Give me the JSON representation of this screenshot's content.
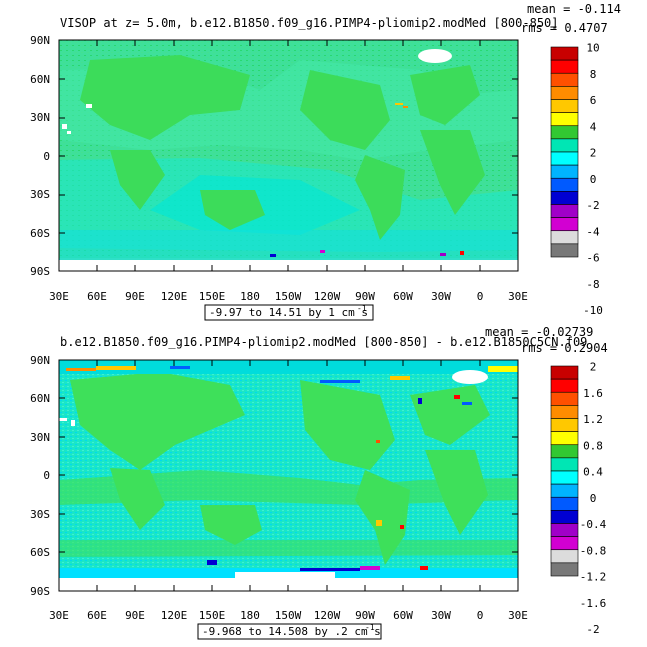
{
  "panels": [
    {
      "title": "VISOP at z=   5.0m, b.e12.B1850.f09_g16.PIMP4-pliomip2.modMed [800-850]",
      "mean_label": "mean = -0.114",
      "rms_label": "rms = 0.4707",
      "range_label": "-9.97 to 14.51 by 1 cm s",
      "range_sup": "-1",
      "colorbar_labels": [
        "10",
        "8",
        "6",
        "4",
        "2",
        "0",
        "-2",
        "-4",
        "-6",
        "-8",
        "-10"
      ]
    },
    {
      "title": "b.e12.B1850.f09_g16.PIMP4-pliomip2.modMed [800-850]  - b.e12.B1850C5CN.f09",
      "mean_label": "mean = -0.02739",
      "rms_label": "rms = 0.2904",
      "range_label": "-9.968 to 14.508 by .2 cm s",
      "range_sup": "-1",
      "colorbar_labels": [
        "2",
        "1.6",
        "1.2",
        "0.8",
        "0.4",
        "0",
        "-0.4",
        "-0.8",
        "-1.2",
        "-1.6",
        "-2"
      ]
    }
  ],
  "lat_labels": [
    "90N",
    "60N",
    "30N",
    "0",
    "30S",
    "60S",
    "90S"
  ],
  "lon_labels": [
    "30E",
    "60E",
    "90E",
    "120E",
    "150E",
    "180",
    "150W",
    "120W",
    "90W",
    "60W",
    "30W",
    "0",
    "30E"
  ],
  "colorbar_colors": [
    "#c80000",
    "#ff0000",
    "#ff5000",
    "#ff8c00",
    "#ffc800",
    "#ffff00",
    "#32c832",
    "#00e6b4",
    "#00ffff",
    "#00b4ff",
    "#005aff",
    "#0000d2",
    "#a000c8",
    "#d200d2",
    "#dcdcdc",
    "#787878"
  ],
  "field_colors": {
    "background": "#32dc5a",
    "ocean_light": "#00eedd",
    "ocean_mid": "#00e6e6",
    "land_ice": "#ffffff"
  }
}
